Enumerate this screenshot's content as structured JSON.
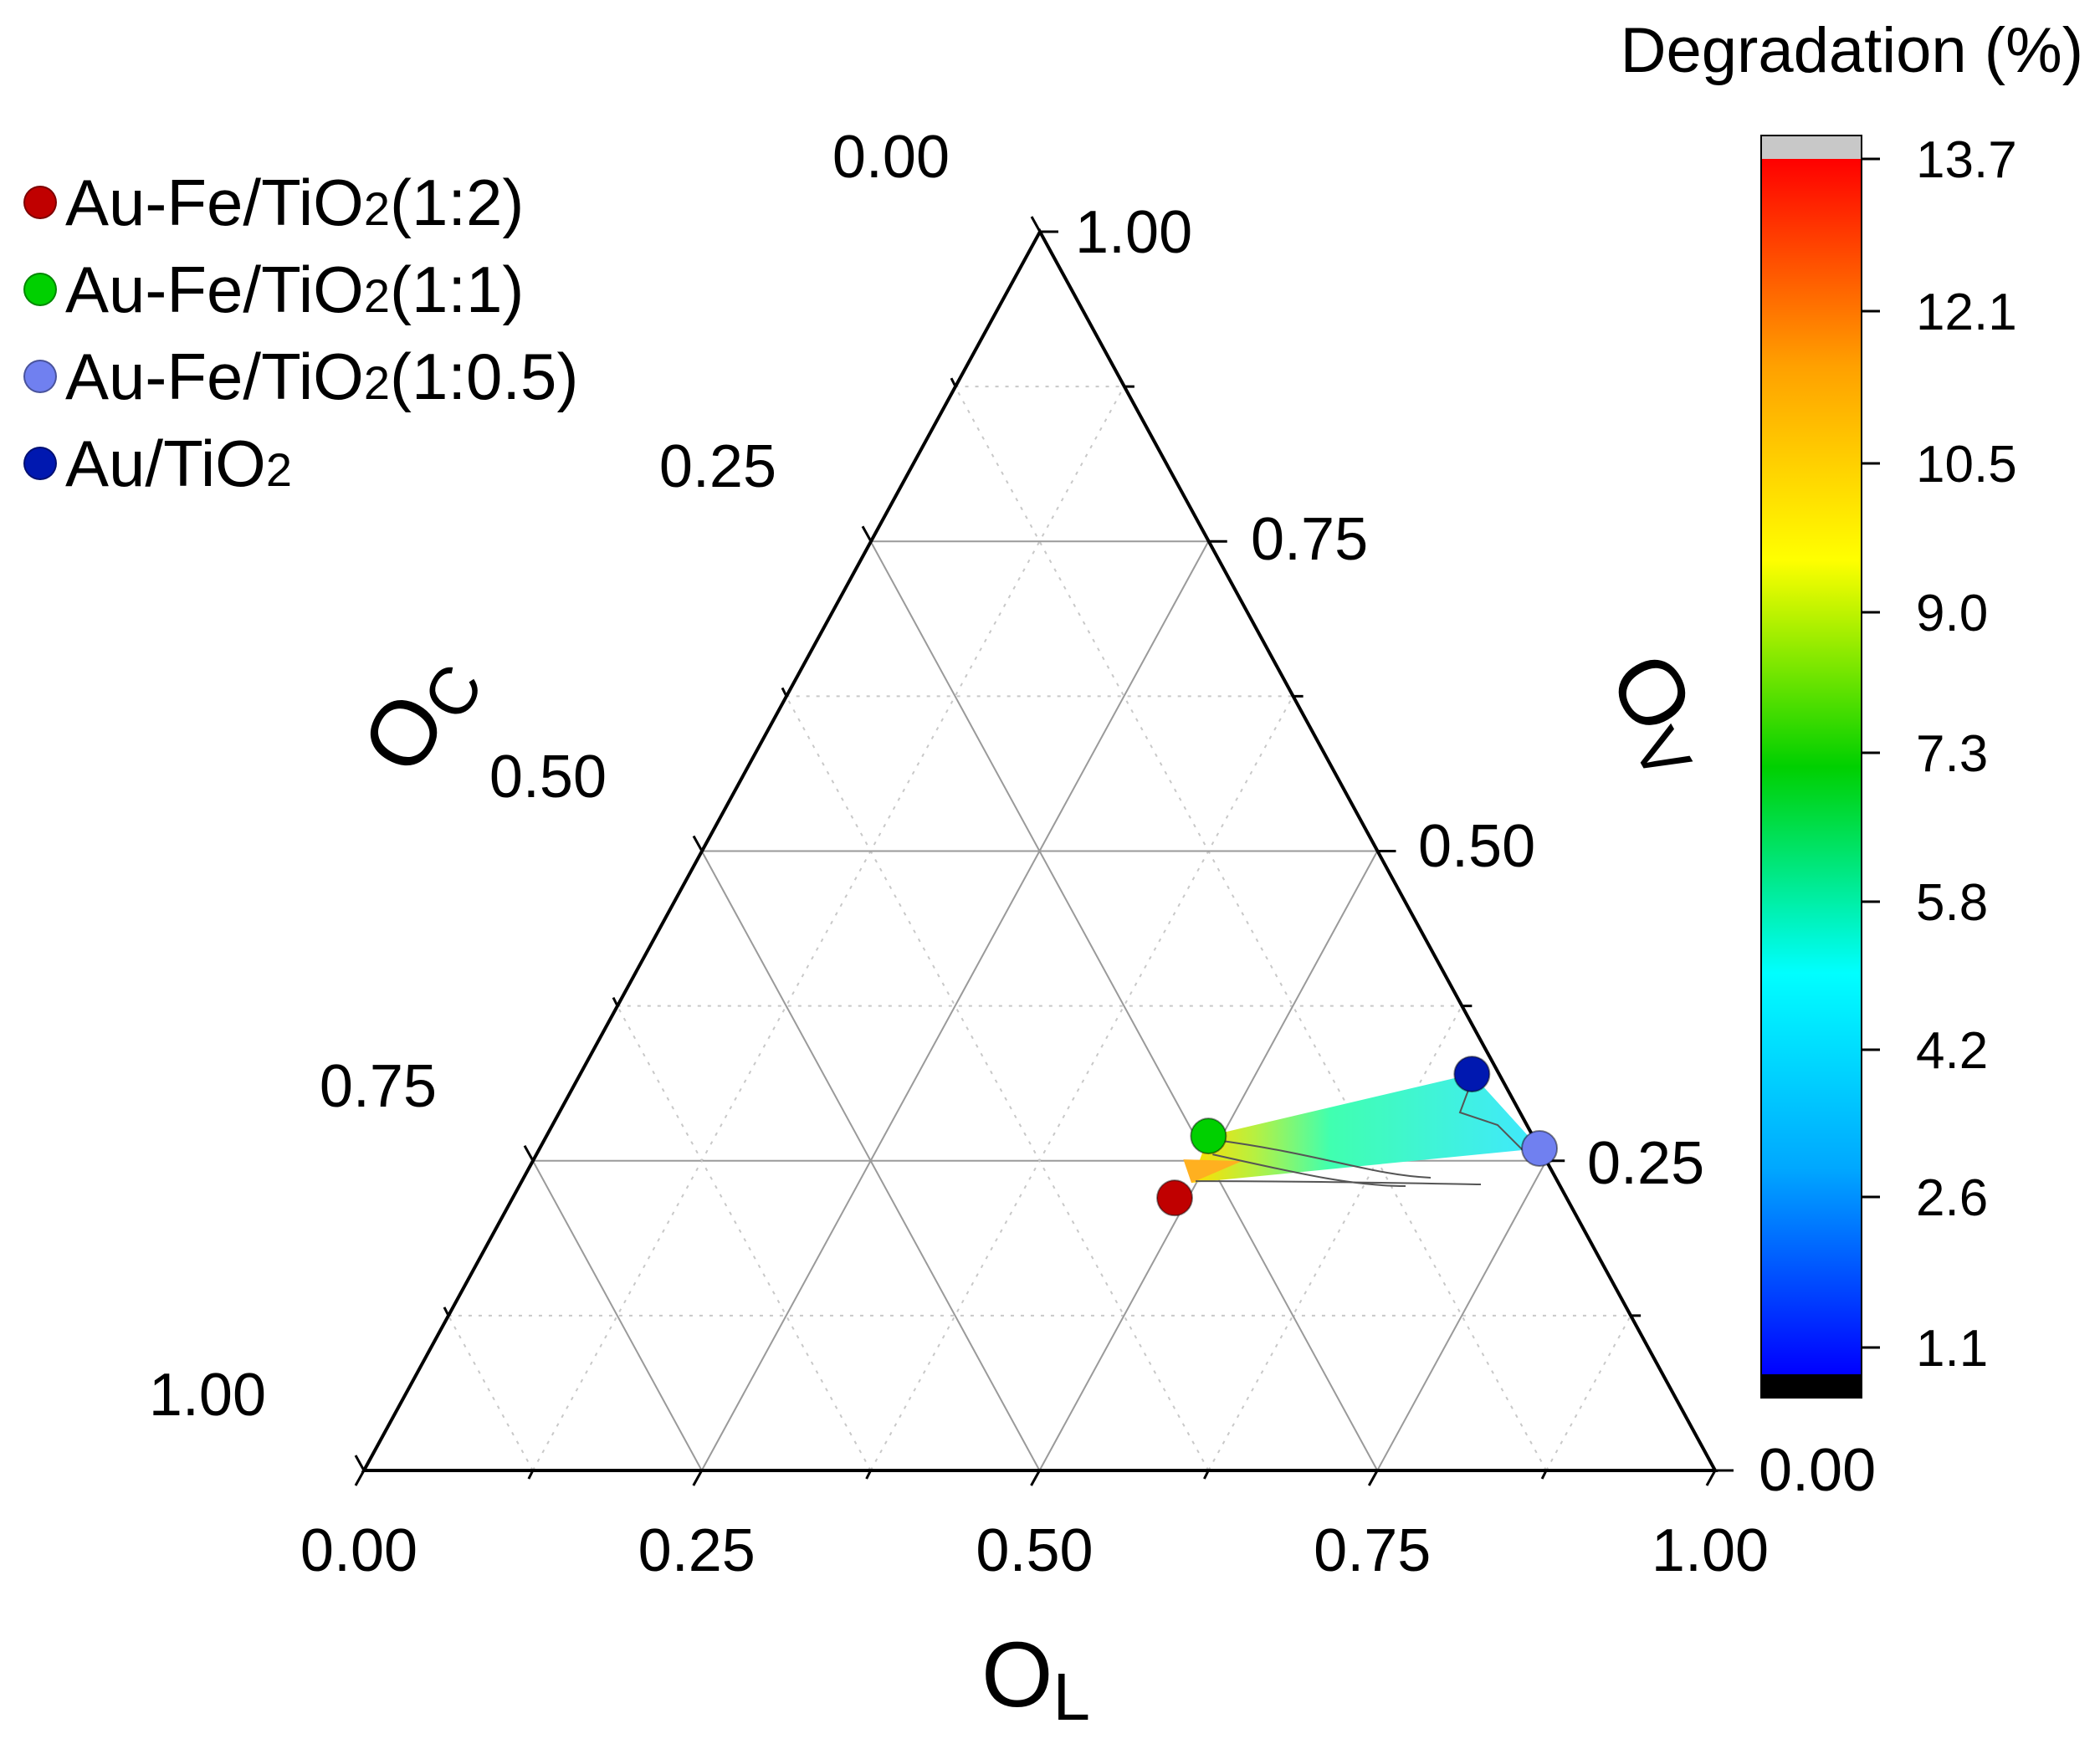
{
  "chart_data": {
    "type": "ternary-contour",
    "colorbar": {
      "title": "Degradation (%)",
      "ticks": [
        "13.7",
        "12.1",
        "10.5",
        "9.0",
        "7.3",
        "5.8",
        "4.2",
        "2.6",
        "1.1"
      ],
      "min": 1.1,
      "max": 13.7,
      "colors": [
        "#0000ff",
        "#00a8ff",
        "#00ffff",
        "#00d000",
        "#ffff00",
        "#ffa000",
        "#ff0000"
      ]
    },
    "axes": {
      "bottom": {
        "label": "O",
        "sub": "L",
        "ticks": [
          "0.00",
          "0.25",
          "0.50",
          "0.75",
          "1.00"
        ]
      },
      "left": {
        "label": "O",
        "sub": "C",
        "ticks": [
          "0.00",
          "0.25",
          "0.50",
          "0.75",
          "1.00"
        ]
      },
      "right": {
        "label": "O",
        "sub": "V",
        "ticks": [
          "1.00",
          "0.75",
          "0.50",
          "0.25",
          "0.00"
        ]
      }
    },
    "legend": [
      {
        "name": "Au-Fe/TiO",
        "sub": "2",
        "ratio": "(1:2)",
        "color": "#c00000"
      },
      {
        "name": "Au-Fe/TiO",
        "sub": "2",
        "ratio": "(1:1)",
        "color": "#00d000"
      },
      {
        "name": "Au-Fe/TiO",
        "sub": "2",
        "ratio": "(1:0.5)",
        "color": "#7080f0"
      },
      {
        "name": "Au/TiO",
        "sub": "2",
        "ratio": "",
        "color": "#0018b0"
      }
    ],
    "points": [
      {
        "series": "Au-Fe/TiO2(1:2)",
        "OL": 0.49,
        "OC": 0.29,
        "OV": 0.22,
        "color": "#c00000",
        "degradation": 13.7
      },
      {
        "series": "Au-Fe/TiO2(1:1)",
        "OL": 0.49,
        "OC": 0.24,
        "OV": 0.27,
        "color": "#00d000",
        "degradation": 8.1
      },
      {
        "series": "Au-Fe/TiO2(1:0.5)",
        "OL": 0.74,
        "OC": 0.0,
        "OV": 0.26,
        "color": "#7080f0",
        "degradation": 3.3
      },
      {
        "series": "Au/TiO2",
        "OL": 0.66,
        "OC": 0.02,
        "OV": 0.32,
        "color": "#0018b0",
        "degradation": 2.8
      }
    ]
  }
}
